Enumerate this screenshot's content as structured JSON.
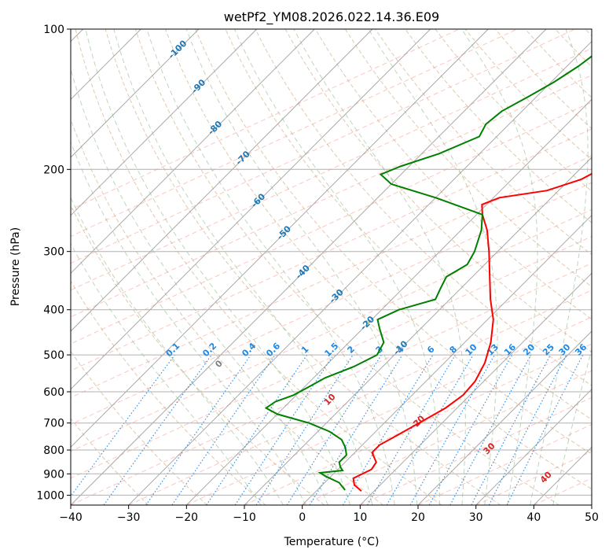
{
  "chart_data": {
    "type": "line",
    "title": "wetPf2_YM08.2026.022.14.36.E09",
    "xlabel": "Temperature (°C)",
    "ylabel": "Pressure (hPa)",
    "xlim": [
      -40,
      50
    ],
    "ylim": [
      1050,
      100
    ],
    "y_scale": "log",
    "skew": "45 degrees",
    "grid": true,
    "x_ticks": [
      -40,
      -30,
      -20,
      -10,
      0,
      10,
      20,
      30,
      40,
      50
    ],
    "y_ticks": [
      100,
      200,
      300,
      400,
      500,
      600,
      700,
      800,
      900,
      1000
    ],
    "isotherm_labels": {
      "values": [
        "-100",
        "-90",
        "-80",
        "-70",
        "-60",
        "-50",
        "-40",
        "-30",
        "-20",
        "-10"
      ],
      "pressures": [
        110,
        132,
        162,
        188,
        232,
        272,
        330,
        372,
        425,
        480
      ]
    },
    "mixing_ratio_labels": [
      "0.1",
      "0.2",
      "0.4",
      "0.6",
      "1",
      "1.5",
      "2",
      "3",
      "4",
      "6",
      "8",
      "10",
      "13",
      "16",
      "20",
      "25",
      "30",
      "36"
    ],
    "moist_adiabat_labels": [
      "0",
      "10",
      "20",
      "30",
      "40"
    ],
    "series": [
      {
        "color": "#ff0000",
        "points": [
          {
            "p": 980,
            "t": 7.8
          },
          {
            "p": 950,
            "t": 5.5
          },
          {
            "p": 920,
            "t": 4.2
          },
          {
            "p": 880,
            "t": 5.8
          },
          {
            "p": 850,
            "t": 5.4
          },
          {
            "p": 810,
            "t": 3.0
          },
          {
            "p": 780,
            "t": 3.0
          },
          {
            "p": 740,
            "t": 4.5
          },
          {
            "p": 700,
            "t": 6.0
          },
          {
            "p": 650,
            "t": 8.0
          },
          {
            "p": 610,
            "t": 8.8
          },
          {
            "p": 570,
            "t": 8.5
          },
          {
            "p": 520,
            "t": 7.0
          },
          {
            "p": 470,
            "t": 4.5
          },
          {
            "p": 420,
            "t": 1.0
          },
          {
            "p": 380,
            "t": -3.0
          },
          {
            "p": 340,
            "t": -7.0
          },
          {
            "p": 300,
            "t": -11.5
          },
          {
            "p": 270,
            "t": -15.5
          },
          {
            "p": 250,
            "t": -19.0
          },
          {
            "p": 238,
            "t": -20.8
          },
          {
            "p": 230,
            "t": -19.0
          },
          {
            "p": 222,
            "t": -12.0
          },
          {
            "p": 210,
            "t": -8.0
          },
          {
            "p": 200,
            "t": -6.5
          },
          {
            "p": 188,
            "t": -6.5
          },
          {
            "p": 175,
            "t": -8.0
          },
          {
            "p": 160,
            "t": -9.5
          },
          {
            "p": 145,
            "t": -11.5
          },
          {
            "p": 132,
            "t": -14.5
          },
          {
            "p": 120,
            "t": -18.0
          },
          {
            "p": 110,
            "t": -20.5
          },
          {
            "p": 100,
            "t": -23.5
          }
        ]
      },
      {
        "color": "#008000",
        "points": [
          {
            "p": 975,
            "t": 4.8
          },
          {
            "p": 940,
            "t": 2.5
          },
          {
            "p": 910,
            "t": -1.0
          },
          {
            "p": 895,
            "t": -2.5
          },
          {
            "p": 885,
            "t": 1.0
          },
          {
            "p": 870,
            "t": 0.0
          },
          {
            "p": 850,
            "t": -1.0
          },
          {
            "p": 820,
            "t": -1.0
          },
          {
            "p": 790,
            "t": -2.5
          },
          {
            "p": 760,
            "t": -4.5
          },
          {
            "p": 730,
            "t": -8.0
          },
          {
            "p": 700,
            "t": -13.0
          },
          {
            "p": 670,
            "t": -20.0
          },
          {
            "p": 650,
            "t": -23.0
          },
          {
            "p": 630,
            "t": -22.5
          },
          {
            "p": 610,
            "t": -20.5
          },
          {
            "p": 590,
            "t": -19.5
          },
          {
            "p": 560,
            "t": -18.0
          },
          {
            "p": 530,
            "t": -15.0
          },
          {
            "p": 500,
            "t": -13.0
          },
          {
            "p": 470,
            "t": -14.0
          },
          {
            "p": 440,
            "t": -17.0
          },
          {
            "p": 420,
            "t": -19.0
          },
          {
            "p": 400,
            "t": -17.0
          },
          {
            "p": 380,
            "t": -12.5
          },
          {
            "p": 360,
            "t": -13.5
          },
          {
            "p": 340,
            "t": -14.5
          },
          {
            "p": 320,
            "t": -13.0
          },
          {
            "p": 300,
            "t": -14.0
          },
          {
            "p": 270,
            "t": -16.5
          },
          {
            "p": 250,
            "t": -19.0
          },
          {
            "p": 230,
            "t": -30.0
          },
          {
            "p": 215,
            "t": -40.0
          },
          {
            "p": 205,
            "t": -43.5
          },
          {
            "p": 197,
            "t": -41.5
          },
          {
            "p": 185,
            "t": -37.0
          },
          {
            "p": 170,
            "t": -33.0
          },
          {
            "p": 160,
            "t": -34.0
          },
          {
            "p": 150,
            "t": -33.5
          },
          {
            "p": 140,
            "t": -31.5
          },
          {
            "p": 130,
            "t": -29.5
          },
          {
            "p": 120,
            "t": -28.0
          },
          {
            "p": 110,
            "t": -27.0
          },
          {
            "p": 100,
            "t": -26.5
          }
        ]
      }
    ]
  }
}
